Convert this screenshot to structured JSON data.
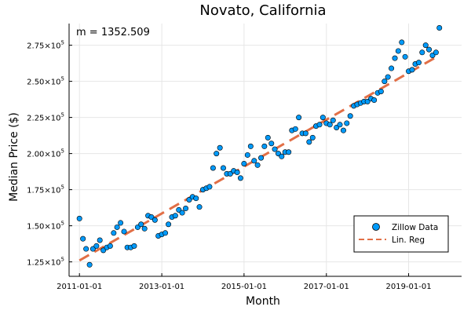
{
  "chart_data": {
    "type": "scatter",
    "title": "Novato, California",
    "xlabel": "Month",
    "ylabel": "Median Price ($)",
    "annotation": "m = 1352.509",
    "x_start": "2011-01",
    "x_step": "month",
    "xlim": [
      "2010-10-01",
      "2020-04-15"
    ],
    "ylim": [
      115000,
      290000
    ],
    "x_ticks": [
      "2011-01-01",
      "2013-01-01",
      "2015-01-01",
      "2017-01-01",
      "2019-01-01"
    ],
    "y_ticks": [
      {
        "value": 125000,
        "mantissa": "1.25",
        "base": "×10",
        "exp": "5"
      },
      {
        "value": 150000,
        "mantissa": "1.50",
        "base": "×10",
        "exp": "5"
      },
      {
        "value": 175000,
        "mantissa": "1.75",
        "base": "×10",
        "exp": "5"
      },
      {
        "value": 200000,
        "mantissa": "2.00",
        "base": "×10",
        "exp": "5"
      },
      {
        "value": 225000,
        "mantissa": "2.25",
        "base": "×10",
        "exp": "5"
      },
      {
        "value": 250000,
        "mantissa": "2.50",
        "base": "×10",
        "exp": "5"
      },
      {
        "value": 275000,
        "mantissa": "2.75",
        "base": "×10",
        "exp": "5"
      }
    ],
    "grid": true,
    "legend_position": "bottom-right",
    "series": [
      {
        "name": "Zillow Data",
        "kind": "scatter",
        "color": "#009AFA",
        "values": [
          155000,
          141000,
          134000,
          123000,
          134000,
          136000,
          140000,
          133000,
          135000,
          136000,
          145000,
          149000,
          152000,
          146000,
          135000,
          135000,
          136000,
          149000,
          151000,
          148000,
          157000,
          156000,
          154000,
          143000,
          144000,
          145000,
          151000,
          156000,
          157000,
          161000,
          159000,
          162000,
          168000,
          170000,
          169000,
          163000,
          175000,
          176000,
          177000,
          190000,
          200000,
          204000,
          190000,
          186000,
          186000,
          188000,
          187000,
          183000,
          193000,
          199000,
          205000,
          195000,
          192000,
          197000,
          205000,
          211000,
          207000,
          203000,
          200000,
          198000,
          201000,
          201000,
          216000,
          217000,
          225000,
          214000,
          214000,
          208000,
          211000,
          219000,
          220000,
          225000,
          221000,
          220000,
          223000,
          218000,
          220000,
          216000,
          221000,
          226000,
          233000,
          234000,
          235000,
          236000,
          236000,
          238000,
          237000,
          242000,
          243000,
          250000,
          253000,
          259000,
          266000,
          271000,
          277000,
          267000,
          257000,
          258000,
          262000,
          263000,
          270000,
          275000,
          272000,
          268000,
          270000,
          287000
        ]
      },
      {
        "name": "Lin. Reg",
        "kind": "line",
        "color": "#E26F46",
        "style": "dashed",
        "slope_per_month": 1352.509,
        "start_value": 126000
      }
    ]
  }
}
